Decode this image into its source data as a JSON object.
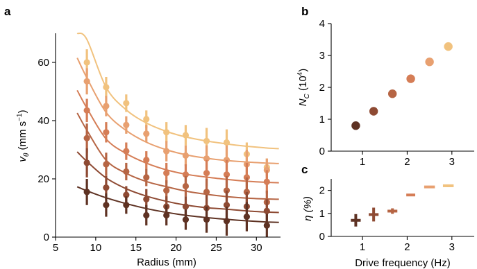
{
  "chart_data": [
    {
      "panel": "a",
      "type": "scatter",
      "xlabel": "Radius (mm)",
      "ylabel": "vθ (mm s−1)",
      "xlim": [
        5,
        33
      ],
      "ylim": [
        0,
        70
      ],
      "xticks": [
        5,
        10,
        15,
        20,
        25,
        30
      ],
      "yticks": [
        0,
        20,
        40,
        60
      ],
      "x": [
        8.9,
        11.3,
        13.8,
        16.3,
        18.8,
        21.2,
        23.8,
        26.3,
        28.8,
        31.3
      ],
      "series": [
        {
          "color": "#f1c27e",
          "values": [
            60.0,
            51.5,
            46.0,
            40.5,
            36.0,
            35.0,
            33.0,
            32.5,
            28.5,
            24.0
          ],
          "errors": [
            4.5,
            3.5,
            3.0,
            3.0,
            3.5,
            3.5,
            4.5,
            4.5,
            4.0,
            3.0
          ],
          "fit": [
            67.9,
            51.4,
            43.7,
            39.2,
            36.3,
            34.4,
            33.0,
            32.0,
            31.2,
            30.6
          ]
        },
        {
          "color": "#e8a070",
          "values": [
            53.5,
            45.0,
            38.5,
            35.5,
            29.5,
            28.0,
            27.0,
            26.5,
            25.0,
            23.0
          ],
          "errors": [
            4.5,
            3.5,
            3.0,
            3.0,
            3.5,
            3.5,
            4.5,
            5.0,
            5.0,
            4.0
          ],
          "fit": [
            54.7,
            42.8,
            36.6,
            32.6,
            30.0,
            28.3,
            27.1,
            26.3,
            25.8,
            25.4
          ]
        },
        {
          "color": "#d57d56",
          "values": [
            43.5,
            36.0,
            29.5,
            26.5,
            22.0,
            21.5,
            22.0,
            21.5,
            20.5,
            19.0
          ],
          "errors": [
            4.0,
            3.5,
            3.0,
            3.0,
            3.5,
            3.5,
            4.5,
            5.0,
            5.0,
            4.0
          ],
          "fit": [
            44.3,
            33.7,
            28.7,
            25.4,
            23.1,
            21.6,
            20.6,
            19.8,
            19.2,
            18.8
          ]
        },
        {
          "color": "#b66544",
          "values": [
            34.0,
            25.0,
            22.5,
            20.5,
            16.0,
            17.5,
            15.5,
            16.0,
            15.5,
            12.0
          ],
          "errors": [
            5.0,
            4.0,
            3.0,
            3.0,
            3.5,
            3.5,
            4.5,
            5.0,
            5.0,
            4.0
          ],
          "fit": [
            36.7,
            26.4,
            21.9,
            19.1,
            17.3,
            15.8,
            14.7,
            13.9,
            13.4,
            13.1
          ]
        },
        {
          "color": "#8e4a33",
          "values": [
            25.5,
            17.0,
            14.5,
            13.0,
            10.5,
            10.5,
            10.0,
            11.0,
            10.5,
            9.0
          ],
          "errors": [
            5.0,
            4.0,
            3.0,
            3.5,
            3.5,
            3.5,
            4.5,
            5.0,
            5.0,
            4.0
          ],
          "fit": [
            26.0,
            20.3,
            16.6,
            14.1,
            12.3,
            11.0,
            10.1,
            9.6,
            9.0,
            8.6
          ]
        },
        {
          "color": "#5e3223",
          "values": [
            15.5,
            11.0,
            11.0,
            7.5,
            7.5,
            6.0,
            6.0,
            5.5,
            7.0,
            4.0
          ],
          "errors": [
            4.5,
            4.0,
            3.0,
            3.5,
            3.5,
            3.5,
            4.5,
            5.0,
            5.0,
            4.0
          ],
          "fit": [
            15.9,
            13.5,
            11.5,
            9.8,
            8.5,
            7.5,
            6.7,
            6.1,
            5.6,
            5.2
          ]
        }
      ]
    },
    {
      "panel": "b",
      "type": "scatter",
      "xlabel": "",
      "ylabel": "NC (10^4)",
      "xlim": [
        0.3,
        3.5
      ],
      "ylim": [
        0,
        4
      ],
      "xticks": [
        1,
        2,
        3
      ],
      "yticks": [
        0,
        1,
        2,
        3,
        4
      ],
      "x": [
        0.85,
        1.25,
        1.67,
        2.08,
        2.5,
        2.92
      ],
      "values": [
        0.8,
        1.25,
        1.8,
        2.27,
        2.8,
        3.28
      ],
      "colors": [
        "#5e3223",
        "#8e4a33",
        "#b66544",
        "#d57d56",
        "#e8a070",
        "#f1c27e"
      ]
    },
    {
      "panel": "c",
      "type": "scatter",
      "xlabel": "Drive frequency (Hz)",
      "ylabel": "η (%)",
      "xlim": [
        0.3,
        3.5
      ],
      "ylim": [
        0,
        2.5
      ],
      "xticks": [
        1,
        2,
        3
      ],
      "yticks": [
        0,
        1,
        2
      ],
      "x": [
        0.85,
        1.25,
        1.67,
        2.08,
        2.5,
        2.92
      ],
      "values": [
        0.7,
        0.95,
        1.1,
        1.8,
        2.15,
        2.2
      ],
      "yerr": [
        0.27,
        0.3,
        0.12,
        0.05,
        0.05,
        0.06
      ],
      "xerr": [
        0.11,
        0.11,
        0.11,
        0.1,
        0.12,
        0.12
      ],
      "colors": [
        "#5e3223",
        "#8e4a33",
        "#b66544",
        "#d57d56",
        "#e8a070",
        "#f1c27e"
      ]
    }
  ],
  "labels": {
    "a": "a",
    "b": "b",
    "c": "c",
    "a_x_ticks": [
      "5",
      "10",
      "15",
      "20",
      "25",
      "30"
    ],
    "a_y_ticks": [
      "0",
      "20",
      "40",
      "60"
    ],
    "b_x_ticks": [
      "1",
      "2",
      "3"
    ],
    "b_y_ticks": [
      "0",
      "1",
      "2",
      "3",
      "4"
    ],
    "c_x_ticks": [
      "1",
      "2",
      "3"
    ],
    "c_y_ticks": [
      "0",
      "1",
      "2"
    ],
    "a_xlabel": "Radius (mm)",
    "a_ylabel_v": "v",
    "a_ylabel_sub": "θ",
    "a_ylabel_unit": " (mm s",
    "a_ylabel_exp": "−1",
    "a_ylabel_close": ")",
    "b_ylabel_n": "N",
    "b_ylabel_sub": "C",
    "b_ylabel_unit": " (10",
    "b_ylabel_exp": "4",
    "b_ylabel_close": ")",
    "c_xlabel": "Drive frequency (Hz)",
    "c_ylabel": "η (%)"
  }
}
